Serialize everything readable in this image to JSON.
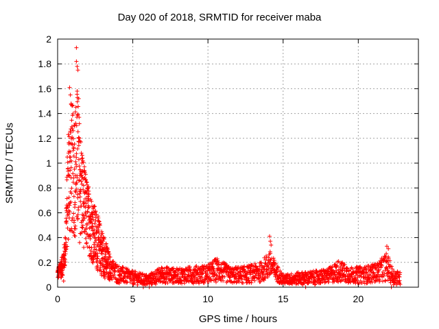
{
  "chart_data": {
    "type": "scatter",
    "title": "Day 020 of 2018, SRMTID for receiver maba",
    "xlabel": "GPS time / hours",
    "ylabel": "SRMTID / TECUs",
    "xlim": [
      0,
      24
    ],
    "ylim": [
      0,
      2
    ],
    "xticks": [
      "0",
      "5",
      "10",
      "15",
      "20"
    ],
    "xtick_values": [
      0,
      5,
      10,
      15,
      20
    ],
    "yticks": [
      "0",
      "0.2",
      "0.4",
      "0.6",
      "0.8",
      "1",
      "1.2",
      "1.4",
      "1.6",
      "1.8",
      "2"
    ],
    "ytick_values": [
      0,
      0.2,
      0.4,
      0.6,
      0.8,
      1.0,
      1.2,
      1.4,
      1.6,
      1.8,
      2.0
    ],
    "grid": true,
    "marker": "+",
    "series": [
      {
        "name": "SRMTID",
        "color": "#ff0000",
        "envelope": [
          {
            "x": 0.0,
            "low": 0.06,
            "high": 0.15
          },
          {
            "x": 0.3,
            "low": 0.08,
            "high": 0.25
          },
          {
            "x": 0.5,
            "low": 0.15,
            "high": 0.4
          },
          {
            "x": 0.7,
            "low": 0.35,
            "high": 1.3
          },
          {
            "x": 0.9,
            "low": 0.4,
            "high": 1.5
          },
          {
            "x": 1.1,
            "low": 0.4,
            "high": 1.45
          },
          {
            "x": 1.3,
            "low": 0.35,
            "high": 1.6
          },
          {
            "x": 1.5,
            "low": 0.35,
            "high": 1.3
          },
          {
            "x": 1.8,
            "low": 0.3,
            "high": 0.95
          },
          {
            "x": 2.1,
            "low": 0.25,
            "high": 0.8
          },
          {
            "x": 2.5,
            "low": 0.15,
            "high": 0.65
          },
          {
            "x": 3.0,
            "low": 0.08,
            "high": 0.45
          },
          {
            "x": 3.5,
            "low": 0.05,
            "high": 0.25
          },
          {
            "x": 4.0,
            "low": 0.03,
            "high": 0.18
          },
          {
            "x": 5.0,
            "low": 0.02,
            "high": 0.13
          },
          {
            "x": 6.0,
            "low": 0.01,
            "high": 0.1
          },
          {
            "x": 7.0,
            "low": 0.03,
            "high": 0.17
          },
          {
            "x": 8.0,
            "low": 0.03,
            "high": 0.15
          },
          {
            "x": 9.0,
            "low": 0.03,
            "high": 0.17
          },
          {
            "x": 10.0,
            "low": 0.03,
            "high": 0.18
          },
          {
            "x": 10.6,
            "low": 0.04,
            "high": 0.24
          },
          {
            "x": 11.5,
            "low": 0.03,
            "high": 0.16
          },
          {
            "x": 12.5,
            "low": 0.03,
            "high": 0.17
          },
          {
            "x": 13.5,
            "low": 0.04,
            "high": 0.2
          },
          {
            "x": 14.1,
            "low": 0.06,
            "high": 0.3
          },
          {
            "x": 14.6,
            "low": 0.04,
            "high": 0.18
          },
          {
            "x": 15.0,
            "low": 0.02,
            "high": 0.1
          },
          {
            "x": 16.0,
            "low": 0.02,
            "high": 0.12
          },
          {
            "x": 17.0,
            "low": 0.02,
            "high": 0.13
          },
          {
            "x": 18.0,
            "low": 0.03,
            "high": 0.15
          },
          {
            "x": 18.7,
            "low": 0.04,
            "high": 0.22
          },
          {
            "x": 19.5,
            "low": 0.03,
            "high": 0.16
          },
          {
            "x": 20.5,
            "low": 0.03,
            "high": 0.17
          },
          {
            "x": 21.3,
            "low": 0.04,
            "high": 0.2
          },
          {
            "x": 21.9,
            "low": 0.05,
            "high": 0.28
          },
          {
            "x": 22.3,
            "low": 0.02,
            "high": 0.15
          },
          {
            "x": 22.8,
            "low": 0.01,
            "high": 0.12
          }
        ],
        "x_range": [
          0.0,
          22.8
        ],
        "outliers": [
          {
            "x": 1.25,
            "y": 1.93
          },
          {
            "x": 1.25,
            "y": 1.82
          },
          {
            "x": 1.3,
            "y": 1.78
          },
          {
            "x": 1.35,
            "y": 1.75
          },
          {
            "x": 0.8,
            "y": 1.61
          },
          {
            "x": 0.85,
            "y": 1.55
          },
          {
            "x": 1.3,
            "y": 1.58
          },
          {
            "x": 1.4,
            "y": 1.52
          },
          {
            "x": 0.9,
            "y": 1.48
          },
          {
            "x": 14.1,
            "y": 0.41
          },
          {
            "x": 14.15,
            "y": 0.37
          },
          {
            "x": 14.2,
            "y": 0.34
          },
          {
            "x": 21.9,
            "y": 0.33
          },
          {
            "x": 22.0,
            "y": 0.31
          },
          {
            "x": 0.4,
            "y": 0.05
          },
          {
            "x": 22.2,
            "y": 0.0
          },
          {
            "x": 16.5,
            "y": 0.0
          },
          {
            "x": 5.7,
            "y": 0.0
          },
          {
            "x": 6.1,
            "y": 0.0
          }
        ]
      }
    ]
  }
}
